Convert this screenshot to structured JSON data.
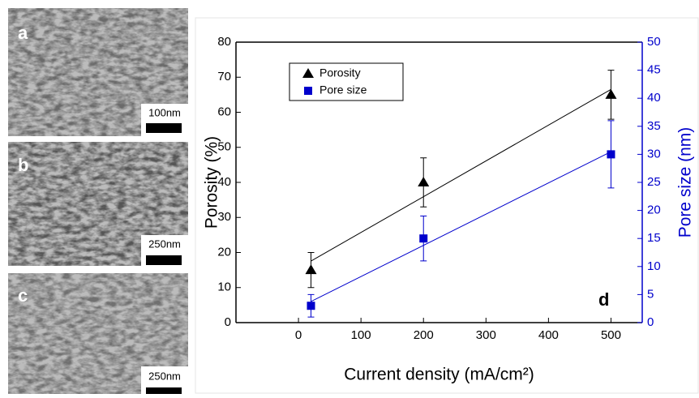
{
  "panels": [
    {
      "label": "a",
      "scale": "100nm"
    },
    {
      "label": "b",
      "scale": "250nm"
    },
    {
      "label": "c",
      "scale": "250nm"
    }
  ],
  "chart_data": {
    "type": "scatter",
    "annotation": "d",
    "xlabel": "Current density (mA/cm²)",
    "ylabel": "Porosity (%)",
    "y2label": "Pore size (nm)",
    "x": [
      20,
      200,
      500
    ],
    "series": [
      {
        "name": "Porosity",
        "color": "#000000",
        "marker": "triangle",
        "values": [
          15,
          40,
          65
        ],
        "errors": [
          5,
          7,
          7
        ]
      },
      {
        "name": "Pore size",
        "color": "#0000cc",
        "marker": "square",
        "axis": "y2",
        "values": [
          3,
          15,
          30
        ],
        "errors": [
          2,
          4,
          6
        ]
      }
    ],
    "xlim": [
      -100,
      550
    ],
    "xticks": [
      0,
      100,
      200,
      300,
      400,
      500
    ],
    "ylim": [
      0,
      80
    ],
    "yticks": [
      0,
      10,
      20,
      30,
      40,
      50,
      60,
      70,
      80
    ],
    "y2lim": [
      0,
      50
    ],
    "y2ticks": [
      0,
      5,
      10,
      15,
      20,
      25,
      30,
      35,
      40,
      45,
      50
    ],
    "legend": "upper left",
    "fit": true
  }
}
